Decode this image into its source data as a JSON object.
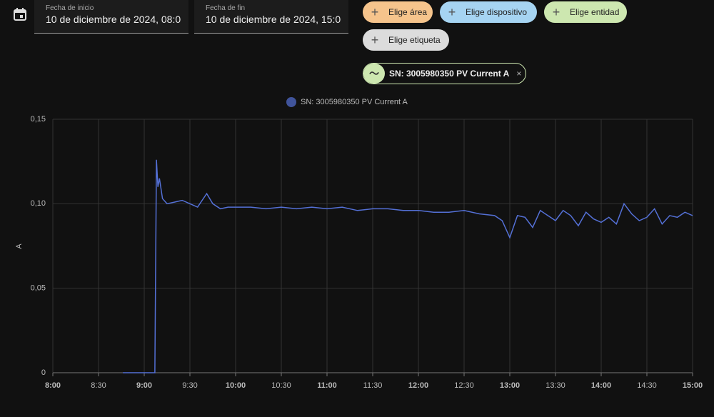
{
  "date_range": {
    "start_label": "Fecha de inicio",
    "start_value": "10 de diciembre de 2024, 08:0",
    "end_label": "Fecha de fin",
    "end_value": "10 de diciembre de 2024, 15:0"
  },
  "filters": {
    "area": "Elige área",
    "device": "Elige dispositivo",
    "entity": "Elige entidad",
    "label": "Elige etiqueta",
    "selected_entity": "SN: 3005980350 PV Current A"
  },
  "chart_data": {
    "type": "line",
    "y_label": "A",
    "x": [
      "8:46",
      "9:07",
      "9:07",
      "9:08",
      "9:09",
      "9:10",
      "9:12",
      "9:15",
      "9:20",
      "9:25",
      "9:30",
      "9:35",
      "9:41",
      "9:45",
      "9:50",
      "9:55",
      "10:00",
      "10:10",
      "10:20",
      "10:30",
      "10:40",
      "10:50",
      "11:00",
      "11:10",
      "11:20",
      "11:30",
      "11:40",
      "11:50",
      "12:00",
      "12:10",
      "12:20",
      "12:30",
      "12:40",
      "12:50",
      "12:55",
      "13:00",
      "13:05",
      "13:10",
      "13:15",
      "13:20",
      "13:25",
      "13:30",
      "13:35",
      "13:40",
      "13:45",
      "13:50",
      "13:55",
      "14:00",
      "14:05",
      "14:10",
      "14:15",
      "14:20",
      "14:25",
      "14:30",
      "14:35",
      "14:40",
      "14:45",
      "14:50",
      "14:55",
      "15:00"
    ],
    "series": [
      {
        "name": "SN: 3005980350 PV Current A",
        "color": "#5470d6",
        "values": [
          0,
          0,
          0.001,
          0.126,
          0.11,
          0.115,
          0.103,
          0.1,
          0.101,
          0.102,
          0.1,
          0.098,
          0.106,
          0.1,
          0.097,
          0.098,
          0.098,
          0.098,
          0.097,
          0.098,
          0.097,
          0.098,
          0.097,
          0.098,
          0.096,
          0.097,
          0.097,
          0.096,
          0.096,
          0.095,
          0.095,
          0.096,
          0.094,
          0.093,
          0.09,
          0.08,
          0.093,
          0.092,
          0.086,
          0.096,
          0.093,
          0.09,
          0.096,
          0.093,
          0.087,
          0.095,
          0.091,
          0.089,
          0.092,
          0.088,
          0.1,
          0.094,
          0.09,
          0.092,
          0.097,
          0.088,
          0.093,
          0.092,
          0.095,
          0.093
        ]
      }
    ],
    "xlim": [
      "8:00",
      "15:00"
    ],
    "xticks": [
      "8:00",
      "8:30",
      "9:00",
      "9:30",
      "10:00",
      "10:30",
      "11:00",
      "11:30",
      "12:00",
      "12:30",
      "13:00",
      "13:30",
      "14:00",
      "14:30",
      "15:00"
    ],
    "ylim": [
      0,
      0.15
    ],
    "yticks": [
      0,
      {
        "value": 0.05,
        "label": "0,05"
      },
      {
        "value": 0.1,
        "label": "0,10"
      },
      {
        "value": 0.15,
        "label": "0,15"
      }
    ],
    "grid": true
  }
}
